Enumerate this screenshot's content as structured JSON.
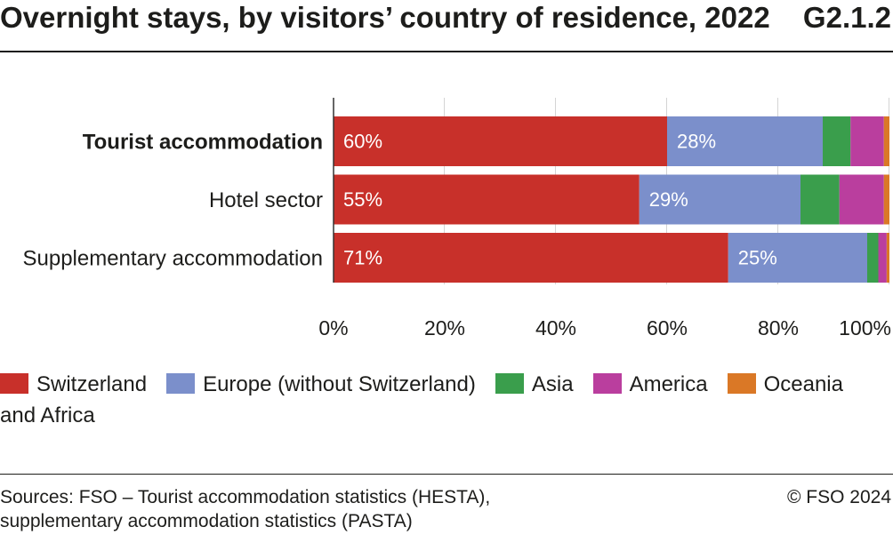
{
  "header": {
    "figure_number": "G2.1.2"
  },
  "chart_data": {
    "type": "bar",
    "orientation": "horizontal",
    "stacked": true,
    "title": "Overnight stays, by visitors’ country of residence, 2022",
    "categories": [
      "Tourist accommodation",
      "Hotel sector",
      "Supplementary accommodation"
    ],
    "series": [
      {
        "name": "Switzerland",
        "color": "#c8302a",
        "values": [
          60,
          55,
          71
        ],
        "labels": [
          "60%",
          "55%",
          "71%"
        ]
      },
      {
        "name": "Europe (without Switzerland)",
        "color": "#7b8fcb",
        "values": [
          28,
          29,
          25
        ],
        "labels": [
          "28%",
          "29%",
          "25%"
        ]
      },
      {
        "name": "Asia",
        "color": "#3a9e4c",
        "values": [
          5,
          7,
          2
        ]
      },
      {
        "name": "America",
        "color": "#ba3e9e",
        "values": [
          6,
          8,
          1.5
        ]
      },
      {
        "name": "Oceania and Africa",
        "color": "#da7826",
        "values": [
          1,
          1,
          0.5
        ]
      }
    ],
    "xlim": [
      0,
      100
    ],
    "xticks": [
      0,
      20,
      40,
      60,
      80,
      100
    ],
    "xtick_labels": [
      "0%",
      "20%",
      "40%",
      "60%",
      "80%",
      "100%"
    ],
    "grid": true,
    "legend_position": "bottom"
  },
  "footer": {
    "sources": [
      "Sources: FSO – Tourist accommodation statistics (HESTA),",
      "supplementary accommodation statistics (PASTA)"
    ],
    "copyright": "© FSO 2024"
  }
}
